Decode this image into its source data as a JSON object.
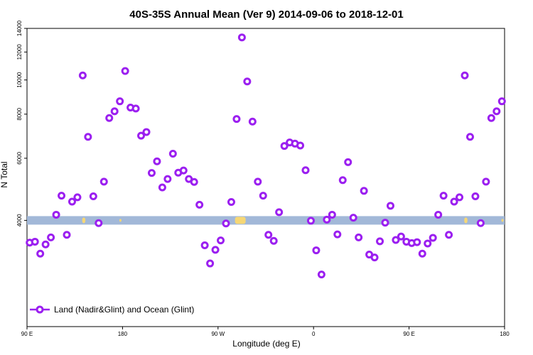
{
  "chart_data": {
    "type": "scatter",
    "title": "40S-35S Annual Mean (Ver 9)   2014-09-06 to 2018-12-01",
    "xlabel": "Longitude (deg E)",
    "ylabel": "N Total",
    "xlim": [
      0,
      450
    ],
    "ylim": [
      2000,
      14000
    ],
    "x_ticks": [
      {
        "value": 0,
        "label": "90 E"
      },
      {
        "value": 90,
        "label": "180"
      },
      {
        "value": 180,
        "label": "90 W"
      },
      {
        "value": 270,
        "label": "0"
      },
      {
        "value": 360,
        "label": "90 E"
      },
      {
        "value": 450,
        "label": "180"
      }
    ],
    "y_ticks": [
      {
        "value": 4000,
        "label": "4000"
      },
      {
        "value": 6000,
        "label": "6000"
      },
      {
        "value": 8000,
        "label": "8000"
      },
      {
        "value": 10000,
        "label": "10000"
      },
      {
        "value": 12000,
        "label": "12000"
      },
      {
        "value": 14000,
        "label": "14000"
      }
    ],
    "series": [
      {
        "name": "Land (Nadir&Glint) and Ocean (Glint)",
        "color": "#9b1ff0",
        "points": [
          [
            2.5,
            3460
          ],
          [
            7.5,
            3480
          ],
          [
            12.5,
            3220
          ],
          [
            17.5,
            3420
          ],
          [
            22.5,
            3580
          ],
          [
            27.5,
            4150
          ],
          [
            32.5,
            4700
          ],
          [
            37.5,
            3640
          ],
          [
            42.5,
            4520
          ],
          [
            47.5,
            4650
          ],
          [
            52.5,
            10300
          ],
          [
            57.5,
            6900
          ],
          [
            62.5,
            4680
          ],
          [
            67.5,
            3930
          ],
          [
            72.5,
            5150
          ],
          [
            77.5,
            7800
          ],
          [
            82.5,
            8150
          ],
          [
            87.5,
            8700
          ],
          [
            92.5,
            10600
          ],
          [
            97.5,
            8350
          ],
          [
            102.5,
            8300
          ],
          [
            107.5,
            6950
          ],
          [
            112.5,
            7120
          ],
          [
            117.5,
            5450
          ],
          [
            122.5,
            5880
          ],
          [
            127.5,
            4960
          ],
          [
            132.5,
            5240
          ],
          [
            137.5,
            6180
          ],
          [
            142.5,
            5460
          ],
          [
            147.5,
            5540
          ],
          [
            152.5,
            5240
          ],
          [
            157.5,
            5140
          ],
          [
            162.5,
            4430
          ],
          [
            167.5,
            3400
          ],
          [
            172.5,
            3020
          ],
          [
            177.5,
            3300
          ],
          [
            182.5,
            3510
          ],
          [
            187.5,
            3920
          ],
          [
            192.5,
            4510
          ],
          [
            197.5,
            7750
          ],
          [
            202.5,
            13200
          ],
          [
            207.5,
            9900
          ],
          [
            212.5,
            7620
          ],
          [
            217.5,
            5150
          ],
          [
            222.5,
            4700
          ],
          [
            227.5,
            3640
          ],
          [
            232.5,
            3500
          ],
          [
            237.5,
            4220
          ],
          [
            242.5,
            6500
          ],
          [
            247.5,
            6650
          ],
          [
            252.5,
            6600
          ],
          [
            257.5,
            6520
          ],
          [
            262.5,
            5550
          ],
          [
            267.5,
            3990
          ],
          [
            272.5,
            3290
          ],
          [
            277.5,
            2810
          ],
          [
            282.5,
            4020
          ],
          [
            287.5,
            4150
          ],
          [
            292.5,
            3650
          ],
          [
            297.5,
            5200
          ],
          [
            302.5,
            5850
          ],
          [
            307.5,
            4070
          ],
          [
            312.5,
            3580
          ],
          [
            317.5,
            4850
          ],
          [
            322.5,
            3200
          ],
          [
            327.5,
            3140
          ],
          [
            332.5,
            3490
          ],
          [
            337.5,
            3940
          ],
          [
            342.5,
            4400
          ],
          [
            347.5,
            3520
          ],
          [
            352.5,
            3600
          ],
          [
            357.5,
            3480
          ],
          [
            362.5,
            3450
          ],
          [
            367.5,
            3470
          ],
          [
            372.5,
            3220
          ],
          [
            377.5,
            3440
          ],
          [
            382.5,
            3570
          ],
          [
            387.5,
            4150
          ],
          [
            392.5,
            4700
          ],
          [
            397.5,
            3640
          ],
          [
            402.5,
            4520
          ],
          [
            407.5,
            4650
          ],
          [
            412.5,
            10300
          ],
          [
            417.5,
            6900
          ],
          [
            422.5,
            4680
          ],
          [
            427.5,
            3930
          ],
          [
            432.5,
            5150
          ],
          [
            437.5,
            7800
          ],
          [
            442.5,
            8150
          ],
          [
            447.5,
            8700
          ]
        ]
      }
    ],
    "legend": {
      "position": "bottom-left",
      "entries": [
        "Land (Nadir&Glint) and Ocean (Glint)"
      ]
    },
    "grid": false,
    "reference_band": {
      "y": 4000,
      "ocean_color": "#a2b8d8",
      "land_color": "#f6d775"
    }
  }
}
